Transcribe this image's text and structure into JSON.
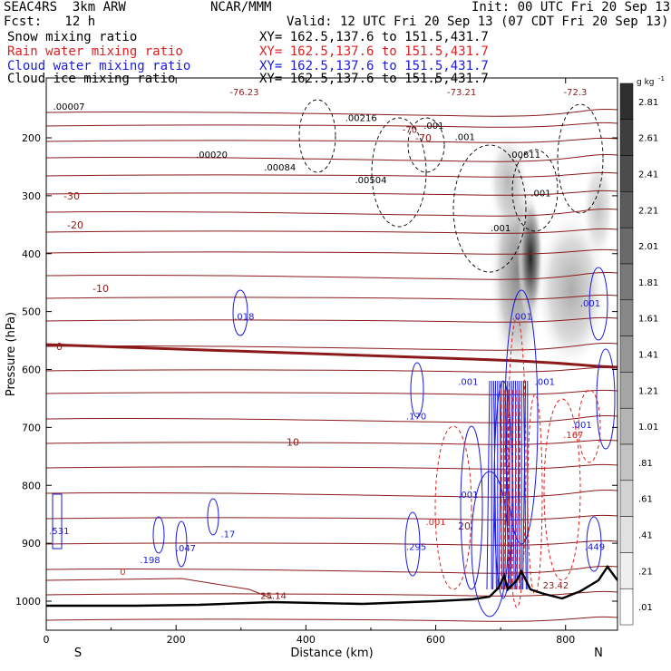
{
  "header": {
    "project": "SEAC4RS  3km ARW",
    "center": "NCAR/MMM",
    "init": "Init: 00 UTC Fri 20 Sep 13",
    "fcst": "Fcst:   12 h",
    "valid": "Valid: 12 UTC Fri 20 Sep 13 (07 CDT Fri 20 Sep 13)"
  },
  "fields": [
    {
      "name": "Snow mixing ratio",
      "xy": "XY= 162.5,137.6 to 151.5,431.7",
      "color": "#000000"
    },
    {
      "name": "Rain water mixing ratio",
      "xy": "XY= 162.5,137.6 to 151.5,431.7",
      "color": "#e02020"
    },
    {
      "name": "Cloud water mixing ratio",
      "xy": "XY= 162.5,137.6 to 151.5,431.7",
      "color": "#1a1ae0"
    },
    {
      "name": "Cloud ice mixing ratio",
      "xy": "XY= 162.5,137.6 to 151.5,431.7",
      "color": "#000000"
    }
  ],
  "chart_data": {
    "type": "heatmap",
    "xlabel": "Distance (km)",
    "ylabel": "Pressure (hPa)",
    "xlim": [
      0,
      880
    ],
    "ylim": [
      1050,
      100
    ],
    "x_ticks": [
      "0",
      "200",
      "400",
      "600",
      "800"
    ],
    "y_ticks": [
      "200",
      "300",
      "400",
      "500",
      "600",
      "700",
      "800",
      "900",
      "1000"
    ],
    "y_tick_values": [
      200,
      300,
      400,
      500,
      600,
      700,
      800,
      900,
      1000
    ],
    "x_tick_values": [
      0,
      200,
      400,
      600,
      800
    ],
    "endpoints": {
      "left": "S",
      "right": "N"
    },
    "colorbar": {
      "unit": "g kg",
      "unit_exp": "-1",
      "labels": [
        "2.81",
        "2.61",
        "2.41",
        "2.21",
        "2.01",
        "1.81",
        "1.61",
        "1.41",
        "1.21",
        "1.01",
        ".81",
        ".61",
        ".41",
        ".21",
        ".01"
      ],
      "values": [
        2.81,
        2.61,
        2.41,
        2.21,
        2.01,
        1.81,
        1.61,
        1.41,
        1.21,
        1.01,
        0.81,
        0.61,
        0.41,
        0.21,
        0.01
      ]
    },
    "temperature_isotherms": [
      {
        "label": "-70",
        "p": 200
      },
      {
        "label": "-30",
        "p": 300
      },
      {
        "label": "-20",
        "p": 350
      },
      {
        "label": "-10",
        "p": 460
      },
      {
        "label": "0",
        "p": 560
      },
      {
        "label": "10",
        "p": 725
      },
      {
        "label": "20",
        "p": 870
      }
    ],
    "annotations": [
      {
        "text": "-76.23",
        "x": 305,
        "p": 120,
        "color": "#8b1a1a"
      },
      {
        "text": "-73.21",
        "x": 640,
        "p": 120,
        "color": "#8b1a1a"
      },
      {
        "text": "-72.3",
        "x": 815,
        "p": 120,
        "color": "#8b1a1a"
      },
      {
        "text": "-70",
        "x": 560,
        "p": 185,
        "color": "#8b1a1a"
      },
      {
        "text": ".00007",
        "x": 35,
        "p": 145,
        "color": "#000000"
      },
      {
        "text": ".00216",
        "x": 485,
        "p": 165,
        "color": "#000000"
      },
      {
        "text": ".00020",
        "x": 255,
        "p": 228,
        "color": "#000000"
      },
      {
        "text": ".00084",
        "x": 360,
        "p": 250,
        "color": "#000000"
      },
      {
        "text": ".00504",
        "x": 500,
        "p": 272,
        "color": "#000000"
      },
      {
        "text": ".001",
        "x": 597,
        "p": 178,
        "color": "#000000"
      },
      {
        "text": ".001",
        "x": 645,
        "p": 198,
        "color": "#000000"
      },
      {
        "text": ".00811",
        "x": 737,
        "p": 228,
        "color": "#000000"
      },
      {
        "text": ".001",
        "x": 762,
        "p": 295,
        "color": "#000000"
      },
      {
        "text": ".001",
        "x": 700,
        "p": 355,
        "color": "#000000"
      },
      {
        "text": ".018",
        "x": 305,
        "p": 508,
        "color": "#1a1ae0"
      },
      {
        "text": ".001",
        "x": 733,
        "p": 508,
        "color": "#1a1ae0"
      },
      {
        "text": ".001",
        "x": 838,
        "p": 485,
        "color": "#1a1ae0"
      },
      {
        "text": ".001",
        "x": 650,
        "p": 620,
        "color": "#1a1ae0"
      },
      {
        "text": ".001",
        "x": 768,
        "p": 620,
        "color": "#1a1ae0"
      },
      {
        "text": ".170",
        "x": 570,
        "p": 680,
        "color": "#1a1ae0"
      },
      {
        "text": ".001",
        "x": 825,
        "p": 695,
        "color": "#1a1ae0"
      },
      {
        "text": ".167",
        "x": 812,
        "p": 712,
        "color": "#e02020"
      },
      {
        "text": ".001",
        "x": 650,
        "p": 815,
        "color": "#1a1ae0"
      },
      {
        "text": ".001",
        "x": 600,
        "p": 862,
        "color": "#e02020"
      },
      {
        "text": ".531",
        "x": 20,
        "p": 878,
        "color": "#1a1ae0"
      },
      {
        "text": ".17",
        "x": 280,
        "p": 883,
        "color": "#1a1ae0"
      },
      {
        "text": ".047",
        "x": 215,
        "p": 908,
        "color": "#1a1ae0"
      },
      {
        "text": ".295",
        "x": 570,
        "p": 905,
        "color": "#1a1ae0"
      },
      {
        "text": ".198",
        "x": 160,
        "p": 928,
        "color": "#1a1ae0"
      },
      {
        "text": ".449",
        "x": 845,
        "p": 905,
        "color": "#1a1ae0"
      },
      {
        "text": "0",
        "x": 118,
        "p": 948,
        "color": "#e02020"
      },
      {
        "text": "25.14",
        "x": 350,
        "p": 990,
        "color": "#8b1a1a"
      },
      {
        "text": "23.42",
        "x": 785,
        "p": 972,
        "color": "#8b1a1a"
      }
    ]
  }
}
